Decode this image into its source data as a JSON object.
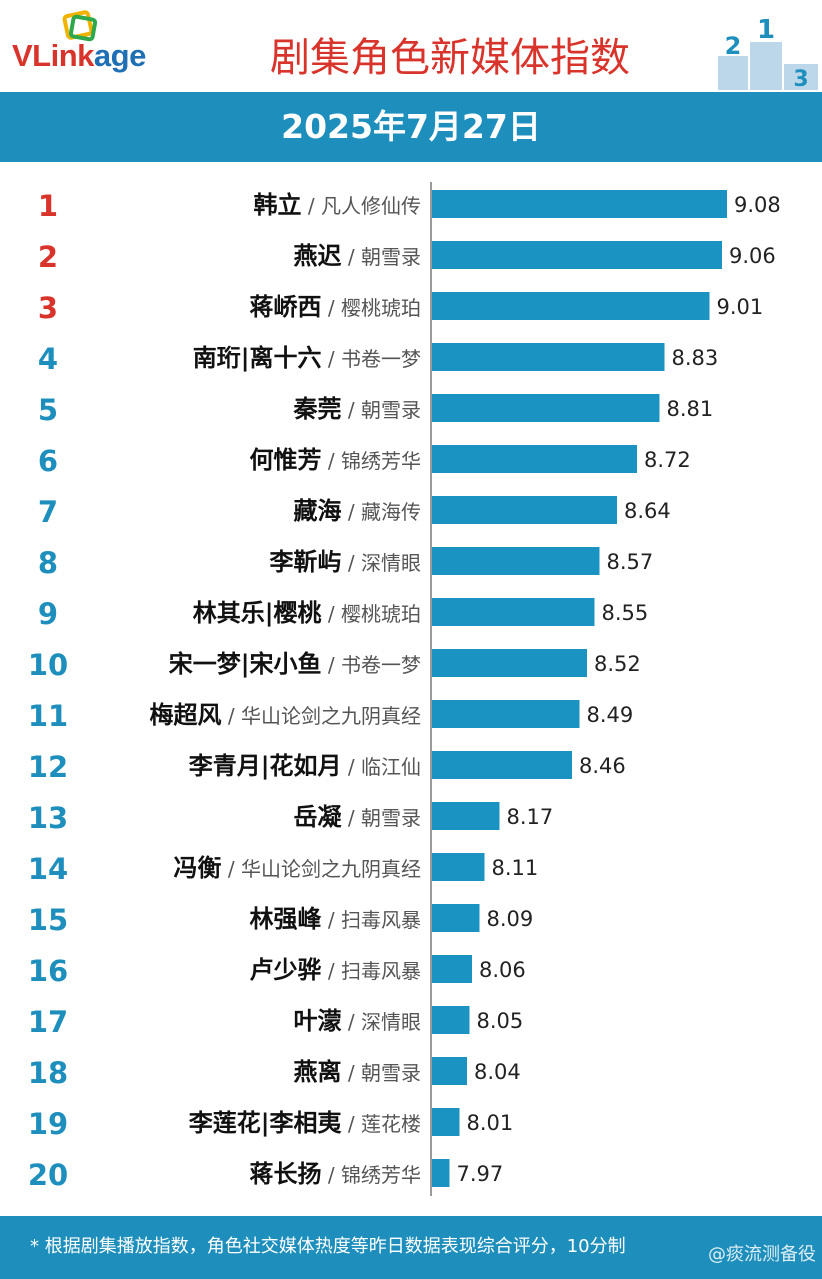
{
  "header": {
    "logo": {
      "part1": "VLink",
      "part2": "age",
      "part1_color": "#d9342b",
      "part2_color": "#1f6fb4"
    },
    "title": "剧集角色新媒体指数",
    "podium_numbers": [
      "2",
      "1",
      "3"
    ]
  },
  "date": "2025年7月27日",
  "footer": {
    "note": "* 根据剧集播放指数，角色社交媒体热度等昨日数据表现综合评分，10分制"
  },
  "watermark": "@痰流测备役",
  "colors": {
    "accent": "#1e8fbd",
    "bar": "#1b93c2",
    "rank_top3": "#d9342b",
    "rank_other": "#1e8fbd",
    "title": "#d9342b"
  },
  "chart_data": {
    "type": "bar",
    "orientation": "horizontal",
    "xlim": [
      7.9,
      9.1
    ],
    "rows": [
      {
        "rank": "1",
        "character": "韩立",
        "drama": "凡人修仙传",
        "value": 9.08
      },
      {
        "rank": "2",
        "character": "燕迟",
        "drama": "朝雪录",
        "value": 9.06
      },
      {
        "rank": "3",
        "character": "蒋峤西",
        "drama": "樱桃琥珀",
        "value": 9.01
      },
      {
        "rank": "4",
        "character": "南珩|离十六",
        "drama": "书卷一梦",
        "value": 8.83
      },
      {
        "rank": "5",
        "character": "秦莞",
        "drama": "朝雪录",
        "value": 8.81
      },
      {
        "rank": "6",
        "character": "何惟芳",
        "drama": "锦绣芳华",
        "value": 8.72
      },
      {
        "rank": "7",
        "character": "藏海",
        "drama": "藏海传",
        "value": 8.64
      },
      {
        "rank": "8",
        "character": "李靳屿",
        "drama": "深情眼",
        "value": 8.57
      },
      {
        "rank": "9",
        "character": "林其乐|樱桃",
        "drama": "樱桃琥珀",
        "value": 8.55
      },
      {
        "rank": "10",
        "character": "宋一梦|宋小鱼",
        "drama": "书卷一梦",
        "value": 8.52
      },
      {
        "rank": "11",
        "character": "梅超风",
        "drama": "华山论剑之九阴真经",
        "value": 8.49
      },
      {
        "rank": "12",
        "character": "李青月|花如月",
        "drama": "临江仙",
        "value": 8.46
      },
      {
        "rank": "13",
        "character": "岳凝",
        "drama": "朝雪录",
        "value": 8.17
      },
      {
        "rank": "14",
        "character": "冯衡",
        "drama": "华山论剑之九阴真经",
        "value": 8.11
      },
      {
        "rank": "15",
        "character": "林强峰",
        "drama": "扫毒风暴",
        "value": 8.09
      },
      {
        "rank": "16",
        "character": "卢少骅",
        "drama": "扫毒风暴",
        "value": 8.06
      },
      {
        "rank": "17",
        "character": "叶濛",
        "drama": "深情眼",
        "value": 8.05
      },
      {
        "rank": "18",
        "character": "燕离",
        "drama": "朝雪录",
        "value": 8.04
      },
      {
        "rank": "19",
        "character": "李莲花|李相夷",
        "drama": "莲花楼",
        "value": 8.01
      },
      {
        "rank": "20",
        "character": "蒋长扬",
        "drama": "锦绣芳华",
        "value": 7.97
      }
    ]
  }
}
